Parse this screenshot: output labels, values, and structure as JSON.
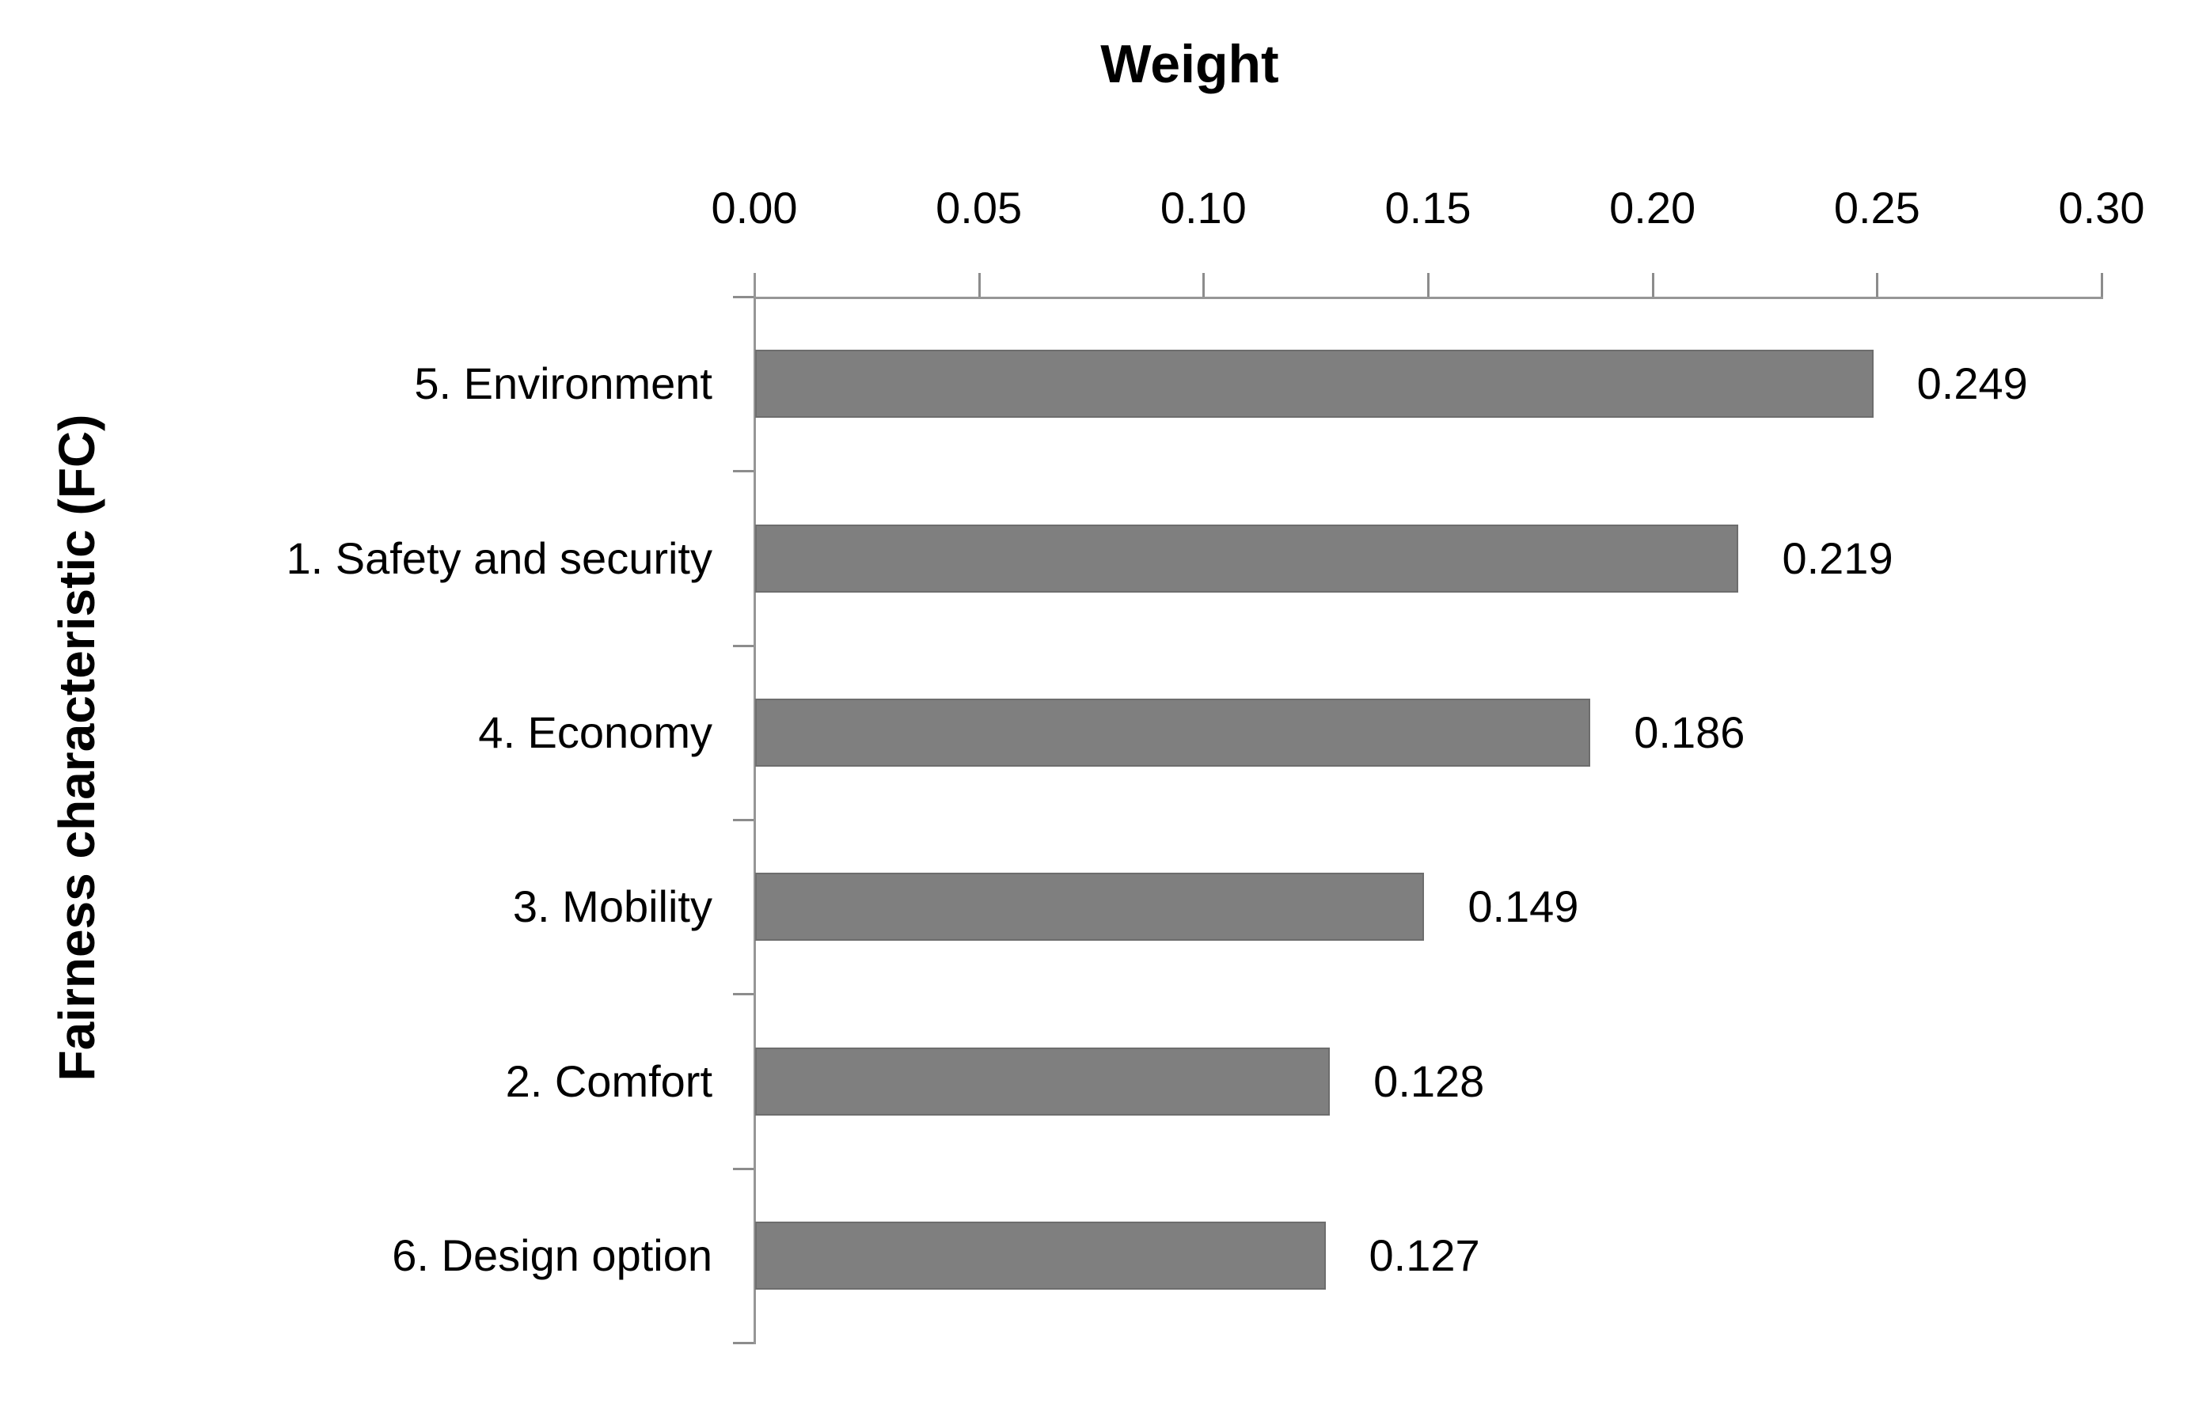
{
  "chart_data": {
    "type": "bar",
    "orientation": "horizontal",
    "title": "Weight",
    "xlabel": "Weight",
    "ylabel": "Fairness characteristic (FC)",
    "categories": [
      "5. Environment",
      "1. Safety and security",
      "4. Economy",
      "3. Mobility",
      "2. Comfort",
      "6. Design option"
    ],
    "values": [
      0.249,
      0.219,
      0.186,
      0.149,
      0.128,
      0.127
    ],
    "value_labels": [
      "0.249",
      "0.219",
      "0.186",
      "0.149",
      "0.128",
      "0.127"
    ],
    "xlim": [
      0.0,
      0.3
    ],
    "xtick_labels": [
      "0.00",
      "0.05",
      "0.10",
      "0.15",
      "0.20",
      "0.25",
      "0.30"
    ],
    "xtick_values": [
      0.0,
      0.05,
      0.1,
      0.15,
      0.2,
      0.25,
      0.3
    ],
    "grid": false,
    "legend": false,
    "data_labels_shown": true,
    "colors": {
      "bar_fill": "#7f7f7f",
      "bar_border": "#6d6d6d",
      "axis_line": "#969696",
      "tick_mark": "#8c8c8c",
      "text": "#000000",
      "background": "#ffffff"
    }
  }
}
